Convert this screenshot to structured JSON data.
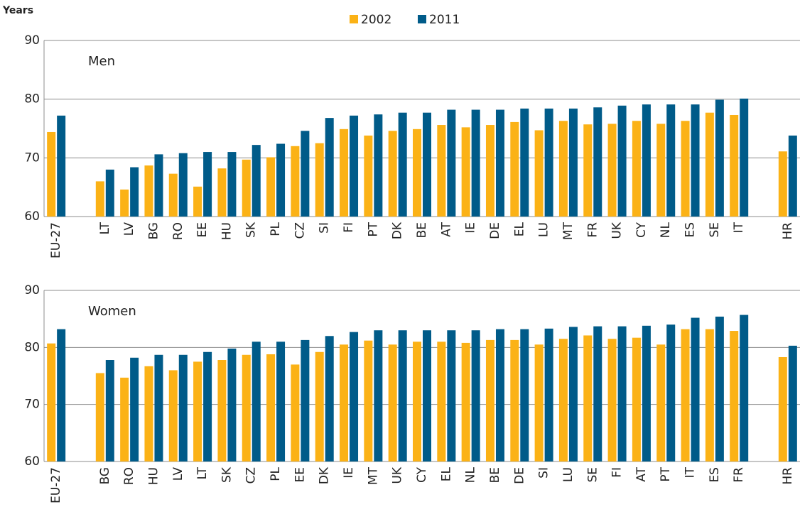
{
  "chart_data": [
    {
      "type": "bar",
      "title": "Men",
      "y_label": "Years",
      "categories": [
        "EU-27",
        null,
        "LT",
        "LV",
        "BG",
        "RO",
        "EE",
        "HU",
        "SK",
        "PL",
        "CZ",
        "SI",
        "FI",
        "PT",
        "DK",
        "BE",
        "AT",
        "IE",
        "DE",
        "EL",
        "LU",
        "MT",
        "FR",
        "UK",
        "CY",
        "NL",
        "ES",
        "SE",
        "IT",
        null,
        "HR"
      ],
      "series": [
        {
          "name": "2002",
          "color": "#fbb216",
          "values": [
            74.4,
            null,
            66.0,
            64.6,
            68.7,
            67.3,
            65.1,
            68.2,
            69.7,
            70.1,
            72.0,
            72.5,
            74.9,
            73.8,
            74.6,
            74.9,
            75.6,
            75.2,
            75.6,
            76.1,
            74.7,
            76.3,
            75.7,
            75.8,
            76.3,
            75.8,
            76.3,
            77.7,
            77.3,
            null,
            71.1
          ]
        },
        {
          "name": "2011",
          "color": "#005b89",
          "values": [
            77.2,
            null,
            68.0,
            68.4,
            70.6,
            70.8,
            71.0,
            71.0,
            72.2,
            72.4,
            74.6,
            76.8,
            77.2,
            77.4,
            77.7,
            77.7,
            78.2,
            78.2,
            78.2,
            78.4,
            78.4,
            78.4,
            78.6,
            78.9,
            79.1,
            79.1,
            79.1,
            79.9,
            80.1,
            null,
            73.8
          ]
        }
      ],
      "ylim": [
        60,
        90
      ],
      "yticks": [
        60,
        70,
        80,
        90
      ],
      "grid": true
    },
    {
      "type": "bar",
      "title": "Women",
      "categories": [
        "EU-27",
        null,
        "BG",
        "RO",
        "HU",
        "LV",
        "LT",
        "SK",
        "CZ",
        "PL",
        "EE",
        "DK",
        "IE",
        "MT",
        "UK",
        "CY",
        "EL",
        "NL",
        "BE",
        "DE",
        "SI",
        "LU",
        "SE",
        "FI",
        "AT",
        "PT",
        "IT",
        "ES",
        "FR",
        null,
        "HR"
      ],
      "series": [
        {
          "color": "#fbb216",
          "values": [
            80.7,
            null,
            75.5,
            74.7,
            76.7,
            76.0,
            77.5,
            77.8,
            78.7,
            78.8,
            77.0,
            79.2,
            80.5,
            81.2,
            80.5,
            81.0,
            81.0,
            80.8,
            81.3,
            81.3,
            80.5,
            81.5,
            82.1,
            81.5,
            81.7,
            80.5,
            83.2,
            83.2,
            82.9,
            null,
            78.3
          ]
        },
        {
          "color": "#005b89",
          "values": [
            83.2,
            null,
            77.8,
            78.2,
            78.7,
            78.7,
            79.2,
            79.8,
            81.0,
            81.0,
            81.3,
            82.0,
            82.7,
            83.0,
            83.0,
            83.0,
            83.0,
            83.0,
            83.2,
            83.2,
            83.3,
            83.6,
            83.7,
            83.7,
            83.8,
            84.0,
            85.2,
            85.4,
            85.7,
            null,
            80.3
          ]
        }
      ],
      "ylim": [
        60,
        90
      ],
      "yticks": [
        60,
        70,
        80,
        90
      ],
      "grid": true
    }
  ]
}
